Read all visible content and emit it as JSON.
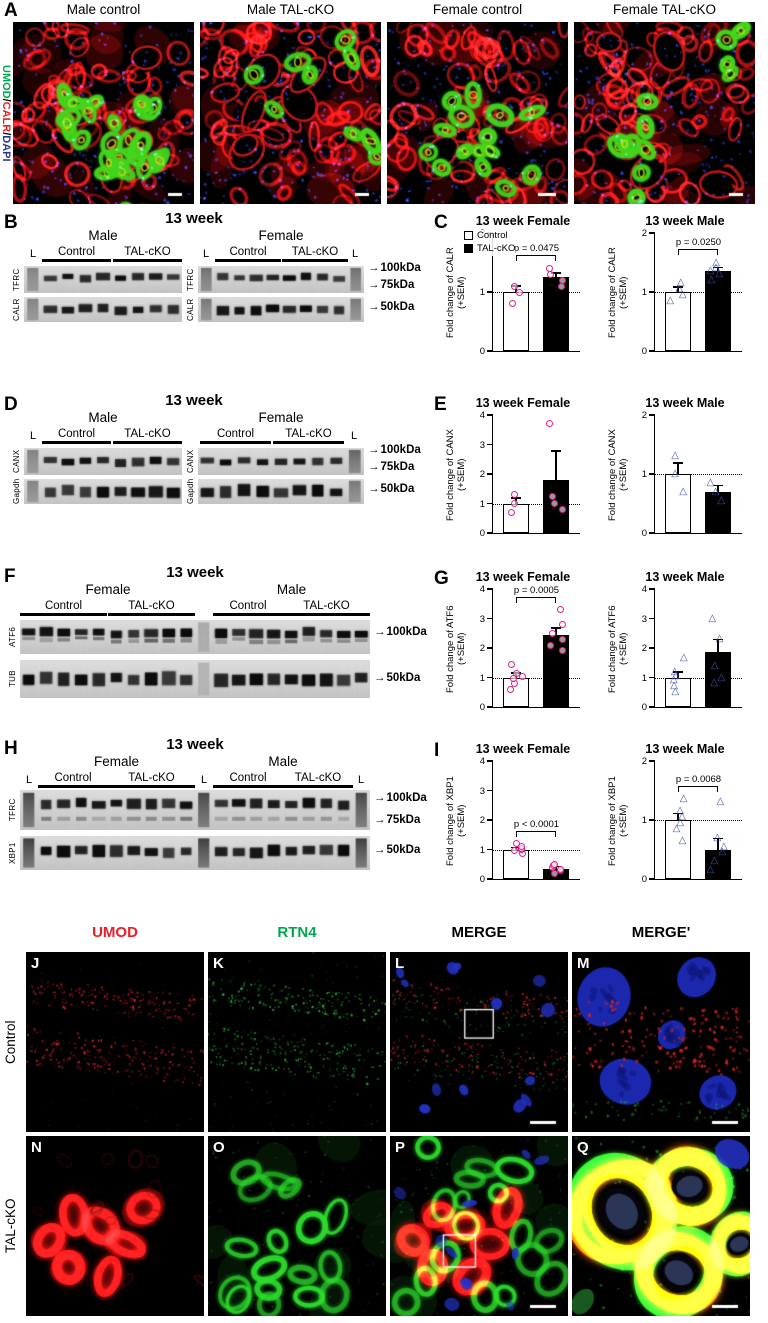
{
  "panelA": {
    "label": "A",
    "side_label": [
      {
        "text": "UMOD",
        "color": "#00a651"
      },
      {
        "text": "/",
        "color": "#000000"
      },
      {
        "text": "CALR",
        "color": "#ed1c24"
      },
      {
        "text": "/",
        "color": "#000000"
      },
      {
        "text": "DAPI",
        "color": "#2e3192"
      }
    ],
    "image_titles": [
      "Male control",
      "Male TAL-cKO",
      "Female control",
      "Female TAL-cKO"
    ]
  },
  "panelB": {
    "label": "B",
    "title": "13 week",
    "groups": [
      "Male",
      "Female"
    ],
    "col_labels": [
      "Control",
      "TAL-cKO"
    ],
    "ladder": "L",
    "proteins": [
      "TFRC",
      "CALR"
    ],
    "markers": [
      "100kDa",
      "75kDa",
      "50kDa"
    ]
  },
  "panelC": {
    "label": "C"
  },
  "panelD": {
    "label": "D",
    "title": "13 week",
    "groups": [
      "Male",
      "Female"
    ],
    "col_labels": [
      "Control",
      "TAL-cKO"
    ],
    "ladder": "L",
    "proteins": [
      "CANX",
      "Gapdh"
    ],
    "markers": [
      "100kDa",
      "75kDa",
      "50kDa"
    ]
  },
  "panelE": {
    "label": "E"
  },
  "panelF": {
    "label": "F",
    "title": "13 week",
    "groups": [
      "Female",
      "Male"
    ],
    "col_labels": [
      "Control",
      "TAL-cKO"
    ],
    "ladder": "L",
    "proteins": [
      "ATF6",
      "TUB"
    ],
    "markers": [
      "100kDa",
      "50kDa"
    ]
  },
  "panelG": {
    "label": "G"
  },
  "panelH": {
    "label": "H",
    "title": "13 week",
    "groups": [
      "Female",
      "Male"
    ],
    "col_labels": [
      "Control",
      "TAL-cKO"
    ],
    "ladder": "L",
    "proteins": [
      "TFRC",
      "XBP1"
    ],
    "markers": [
      "100kDa",
      "75kDa",
      "50kDa"
    ]
  },
  "panelI": {
    "label": "I"
  },
  "legend": {
    "items": [
      {
        "label": "Control",
        "fill": "#ffffff"
      },
      {
        "label": "TAL-cKO",
        "fill": "#000000"
      }
    ]
  },
  "panelJQ": {
    "headers": [
      {
        "text": "UMOD",
        "color": "#ed1c24"
      },
      {
        "text": "RTN4",
        "color": "#00a651"
      },
      {
        "text": "MERGE",
        "color": "#000000"
      },
      {
        "text": "MERGE'",
        "color": "#000000"
      }
    ],
    "row_labels": [
      "Control",
      "TAL-cKO"
    ],
    "letters": [
      [
        "J",
        "K",
        "L",
        "M"
      ],
      [
        "N",
        "O",
        "P",
        "Q"
      ]
    ]
  },
  "chart_data": [
    {
      "id": "C-female",
      "panel": "C",
      "type": "bar",
      "title": "13 week Female",
      "ylabel": "Fold change of CALR (+SEM)",
      "categories": [
        "Control",
        "TAL-cKO"
      ],
      "values": [
        1.0,
        1.25
      ],
      "errors": [
        0.09,
        0.06
      ],
      "points": [
        [
          0.8,
          1.0,
          1.1
        ],
        [
          1.1,
          1.2,
          1.3,
          1.4
        ]
      ],
      "point_shape": "circle",
      "point_color": "#e0218a",
      "bar_colors": [
        "#ffffff",
        "#000000"
      ],
      "ylim": [
        0,
        2
      ],
      "yticks": [
        0,
        1,
        2
      ],
      "ref_line": 1,
      "p_label": "p = 0.0475",
      "legend": true
    },
    {
      "id": "C-male",
      "panel": "C",
      "type": "bar",
      "title": "13 week Male",
      "ylabel": "Fold change of CALR (+SEM)",
      "categories": [
        "Control",
        "TAL-cKO"
      ],
      "values": [
        1.0,
        1.35
      ],
      "errors": [
        0.07,
        0.05
      ],
      "points": [
        [
          0.85,
          0.95,
          1.05,
          1.15
        ],
        [
          1.2,
          1.3,
          1.35,
          1.4,
          1.5
        ]
      ],
      "point_shape": "triangle",
      "point_color": "#3c54a4",
      "bar_colors": [
        "#ffffff",
        "#000000"
      ],
      "ylim": [
        0,
        2
      ],
      "yticks": [
        0,
        1,
        2
      ],
      "ref_line": 1,
      "p_label": "p = 0.0250"
    },
    {
      "id": "E-female",
      "panel": "E",
      "type": "bar",
      "title": "13 week Female",
      "ylabel": "Fold change of CANX (+SEM)",
      "categories": [
        "Control",
        "TAL-cKO"
      ],
      "values": [
        1.0,
        1.8
      ],
      "errors": [
        0.17,
        0.95
      ],
      "points": [
        [
          0.7,
          1.0,
          1.3
        ],
        [
          0.8,
          1.0,
          1.25,
          3.7
        ]
      ],
      "point_shape": "circle",
      "point_color": "#e0218a",
      "bar_colors": [
        "#ffffff",
        "#000000"
      ],
      "ylim": [
        0,
        4
      ],
      "yticks": [
        0,
        1,
        2,
        3,
        4
      ],
      "ref_line": 1
    },
    {
      "id": "E-male",
      "panel": "E",
      "type": "bar",
      "title": "13 week Male",
      "ylabel": "Fold change of CANX (+SEM)",
      "categories": [
        "Control",
        "TAL-cKO"
      ],
      "values": [
        1.0,
        0.7
      ],
      "errors": [
        0.17,
        0.09
      ],
      "points": [
        [
          0.7,
          1.0,
          1.3
        ],
        [
          0.55,
          0.7,
          0.85
        ]
      ],
      "point_shape": "triangle",
      "point_color": "#3c54a4",
      "bar_colors": [
        "#ffffff",
        "#000000"
      ],
      "ylim": [
        0,
        2
      ],
      "yticks": [
        0,
        1,
        2
      ],
      "ref_line": 1
    },
    {
      "id": "G-female",
      "panel": "G",
      "type": "bar",
      "title": "13 week Female",
      "ylabel": "Fold change of ATF6 (+SEM)",
      "categories": [
        "Control",
        "TAL-cKO"
      ],
      "values": [
        1.0,
        2.45
      ],
      "errors": [
        0.12,
        0.2
      ],
      "points": [
        [
          0.6,
          0.8,
          0.95,
          1.05,
          1.15,
          1.45
        ],
        [
          1.9,
          2.1,
          2.3,
          2.5,
          2.8,
          3.3
        ]
      ],
      "point_shape": "circle",
      "point_color": "#e0218a",
      "bar_colors": [
        "#ffffff",
        "#000000"
      ],
      "ylim": [
        0,
        4
      ],
      "yticks": [
        0,
        1,
        2,
        3,
        4
      ],
      "ref_line": 1,
      "p_label": "p = 0.0005"
    },
    {
      "id": "G-male",
      "panel": "G",
      "type": "bar",
      "title": "13 week Male",
      "ylabel": "Fold change of ATF6 (+SEM)",
      "categories": [
        "Control",
        "TAL-cKO"
      ],
      "values": [
        1.0,
        1.85
      ],
      "errors": [
        0.17,
        0.42
      ],
      "points": [
        [
          0.5,
          0.7,
          0.9,
          1.05,
          1.2,
          1.65
        ],
        [
          0.8,
          1.0,
          1.4,
          2.3,
          3.0
        ]
      ],
      "point_shape": "triangle",
      "point_color": "#3c54a4",
      "bar_colors": [
        "#ffffff",
        "#000000"
      ],
      "ylim": [
        0,
        4
      ],
      "yticks": [
        0,
        1,
        2,
        3,
        4
      ],
      "ref_line": 1
    },
    {
      "id": "I-female",
      "panel": "I",
      "type": "bar",
      "title": "13 week Female",
      "ylabel": "Fold change of XBP1 (+SEM)",
      "categories": [
        "Control",
        "TAL-cKO"
      ],
      "values": [
        1.0,
        0.35
      ],
      "errors": [
        0.05,
        0.05
      ],
      "points": [
        [
          0.85,
          0.95,
          1.0,
          1.05,
          1.1,
          1.2
        ],
        [
          0.2,
          0.28,
          0.33,
          0.38,
          0.45,
          0.5
        ]
      ],
      "point_shape": "circle",
      "point_color": "#e0218a",
      "bar_colors": [
        "#ffffff",
        "#000000"
      ],
      "ylim": [
        0,
        4
      ],
      "yticks": [
        0,
        1,
        2,
        3,
        4
      ],
      "ref_line": 1,
      "p_label": "p < 0.0001"
    },
    {
      "id": "I-male",
      "panel": "I",
      "type": "bar",
      "title": "13 week Male",
      "ylabel": "Fold change of XBP1 (+SEM)",
      "categories": [
        "Control",
        "TAL-cKO"
      ],
      "values": [
        1.0,
        0.5
      ],
      "errors": [
        0.1,
        0.17
      ],
      "points": [
        [
          0.65,
          0.85,
          0.95,
          1.05,
          1.15,
          1.35
        ],
        [
          0.15,
          0.3,
          0.45,
          0.55,
          0.7,
          1.3
        ]
      ],
      "point_shape": "triangle",
      "point_color": "#3c54a4",
      "bar_colors": [
        "#ffffff",
        "#000000"
      ],
      "ylim": [
        0,
        2
      ],
      "yticks": [
        0,
        1,
        2
      ],
      "ref_line": 1,
      "p_label": "p = 0.0068"
    }
  ]
}
